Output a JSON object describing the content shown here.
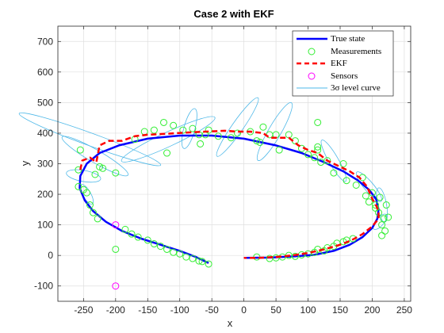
{
  "chart_data": {
    "type": "scatter",
    "title": "Case 2 with EKF",
    "xlabel": "x",
    "ylabel": "y",
    "xlim": [
      -290,
      260
    ],
    "ylim": [
      -150,
      750
    ],
    "xticks": [
      -250,
      -200,
      -150,
      -100,
      -50,
      0,
      50,
      100,
      150,
      200,
      250
    ],
    "yticks": [
      -100,
      0,
      100,
      200,
      300,
      400,
      500,
      600,
      700
    ],
    "grid": true,
    "legend_position": "top-right",
    "legend": [
      "True state",
      "Measurements",
      "EKF",
      "Sensors",
      "3σ level curve"
    ],
    "colors": {
      "true_state": "#0000ff",
      "measurements": "#33ee33",
      "ekf": "#ff0000",
      "sensors": "#ff00ff",
      "level_curve": "#4db8e8"
    },
    "series": [
      {
        "name": "True state",
        "style": "line",
        "points": [
          [
            0,
            -8
          ],
          [
            40,
            -7
          ],
          [
            80,
            -3
          ],
          [
            110,
            2
          ],
          [
            140,
            15
          ],
          [
            165,
            35
          ],
          [
            185,
            60
          ],
          [
            200,
            90
          ],
          [
            208,
            120
          ],
          [
            210,
            150
          ],
          [
            206,
            185
          ],
          [
            195,
            215
          ],
          [
            178,
            245
          ],
          [
            155,
            275
          ],
          [
            125,
            305
          ],
          [
            90,
            335
          ],
          [
            50,
            360
          ],
          [
            0,
            382
          ],
          [
            -50,
            392
          ],
          [
            -100,
            392
          ],
          [
            -150,
            382
          ],
          [
            -195,
            360
          ],
          [
            -225,
            335
          ],
          [
            -245,
            300
          ],
          [
            -255,
            260
          ],
          [
            -256,
            220
          ],
          [
            -248,
            180
          ],
          [
            -235,
            145
          ],
          [
            -215,
            110
          ],
          [
            -190,
            80
          ],
          [
            -160,
            55
          ],
          [
            -130,
            35
          ],
          [
            -100,
            15
          ],
          [
            -75,
            -5
          ],
          [
            -55,
            -25
          ]
        ]
      },
      {
        "name": "Measurements",
        "style": "marker",
        "points": [
          [
            -255,
            345
          ],
          [
            -258,
            280
          ],
          [
            -258,
            225
          ],
          [
            -250,
            215
          ],
          [
            -245,
            205
          ],
          [
            -240,
            165
          ],
          [
            -235,
            140
          ],
          [
            -228,
            120
          ],
          [
            -232,
            265
          ],
          [
            -225,
            290
          ],
          [
            -220,
            285
          ],
          [
            -200,
            270
          ],
          [
            -200,
            20
          ],
          [
            -185,
            85
          ],
          [
            -175,
            70
          ],
          [
            -165,
            60
          ],
          [
            -150,
            50
          ],
          [
            -140,
            38
          ],
          [
            -130,
            30
          ],
          [
            -120,
            20
          ],
          [
            -110,
            10
          ],
          [
            -100,
            5
          ],
          [
            -90,
            -5
          ],
          [
            -80,
            -10
          ],
          [
            -70,
            -18
          ],
          [
            -65,
            -20
          ],
          [
            -55,
            -28
          ],
          [
            -170,
            380
          ],
          [
            -155,
            405
          ],
          [
            -140,
            410
          ],
          [
            -125,
            435
          ],
          [
            -120,
            335
          ],
          [
            -110,
            425
          ],
          [
            -95,
            410
          ],
          [
            -80,
            415
          ],
          [
            -70,
            395
          ],
          [
            -68,
            365
          ],
          [
            -60,
            395
          ],
          [
            -55,
            410
          ],
          [
            -40,
            390
          ],
          [
            -20,
            385
          ],
          [
            -10,
            400
          ],
          [
            10,
            405
          ],
          [
            20,
            375
          ],
          [
            25,
            370
          ],
          [
            30,
            420
          ],
          [
            40,
            395
          ],
          [
            50,
            395
          ],
          [
            55,
            345
          ],
          [
            70,
            395
          ],
          [
            80,
            375
          ],
          [
            90,
            350
          ],
          [
            100,
            330
          ],
          [
            110,
            320
          ],
          [
            115,
            435
          ],
          [
            115,
            355
          ],
          [
            115,
            345
          ],
          [
            120,
            305
          ],
          [
            130,
            310
          ],
          [
            140,
            270
          ],
          [
            155,
            300
          ],
          [
            160,
            245
          ],
          [
            175,
            230
          ],
          [
            185,
            255
          ],
          [
            190,
            195
          ],
          [
            195,
            175
          ],
          [
            200,
            205
          ],
          [
            205,
            165
          ],
          [
            205,
            155
          ],
          [
            210,
            140
          ],
          [
            212,
            190
          ],
          [
            215,
            100
          ],
          [
            218,
            120
          ],
          [
            220,
            80
          ],
          [
            222,
            165
          ],
          [
            225,
            125
          ],
          [
            215,
            65
          ],
          [
            20,
            -5
          ],
          [
            40,
            -10
          ],
          [
            50,
            -8
          ],
          [
            60,
            -5
          ],
          [
            70,
            0
          ],
          [
            80,
            -3
          ],
          [
            90,
            2
          ],
          [
            100,
            5
          ],
          [
            110,
            10
          ],
          [
            115,
            20
          ],
          [
            125,
            15
          ],
          [
            130,
            25
          ],
          [
            140,
            30
          ],
          [
            145,
            40
          ],
          [
            155,
            45
          ],
          [
            160,
            50
          ],
          [
            170,
            55
          ]
        ]
      },
      {
        "name": "EKF",
        "style": "dashed-line",
        "points": [
          [
            -255,
            280
          ],
          [
            -252,
            310
          ],
          [
            -240,
            320
          ],
          [
            -230,
            305
          ],
          [
            -225,
            360
          ],
          [
            -210,
            375
          ],
          [
            -190,
            375
          ],
          [
            -170,
            390
          ],
          [
            -150,
            395
          ],
          [
            -120,
            398
          ],
          [
            -90,
            402
          ],
          [
            -60,
            405
          ],
          [
            -30,
            408
          ],
          [
            -10,
            405
          ],
          [
            10,
            405
          ],
          [
            30,
            400
          ],
          [
            40,
            385
          ],
          [
            55,
            385
          ],
          [
            70,
            385
          ],
          [
            85,
            360
          ],
          [
            100,
            345
          ],
          [
            115,
            335
          ],
          [
            130,
            310
          ],
          [
            150,
            290
          ],
          [
            165,
            275
          ],
          [
            180,
            255
          ],
          [
            192,
            225
          ],
          [
            200,
            185
          ],
          [
            207,
            160
          ],
          [
            210,
            140
          ],
          [
            210,
            120
          ],
          [
            200,
            95
          ],
          [
            185,
            70
          ],
          [
            168,
            50
          ],
          [
            150,
            35
          ],
          [
            125,
            20
          ],
          [
            100,
            8
          ],
          [
            75,
            0
          ],
          [
            50,
            -5
          ],
          [
            20,
            -8
          ],
          [
            0,
            -8
          ]
        ]
      },
      {
        "name": "Sensors",
        "style": "marker",
        "points": [
          [
            -200,
            100
          ],
          [
            -200,
            -100
          ]
        ]
      },
      {
        "name": "3σ level curve",
        "style": "ellipse",
        "ellipses": [
          {
            "center": [
              -240,
              380
            ],
            "rx": 8,
            "ry": 95,
            "angle": 110
          },
          {
            "center": [
              -232,
              325
            ],
            "rx": 8,
            "ry": 48,
            "angle": 120
          },
          {
            "center": [
              -250,
              260
            ],
            "rx": 7,
            "ry": 22,
            "angle": 100
          },
          {
            "center": [
              -118,
              380
            ],
            "rx": 9,
            "ry": 65,
            "angle": 65
          },
          {
            "center": [
              -85,
              415
            ],
            "rx": 7,
            "ry": 26,
            "angle": 15
          },
          {
            "center": [
              -10,
              420
            ],
            "rx": 7,
            "ry": 45,
            "angle": 35
          },
          {
            "center": [
              48,
              405
            ],
            "rx": 8,
            "ry": 42,
            "angle": 30
          },
          {
            "center": [
              140,
              310
            ],
            "rx": 6,
            "ry": 30,
            "angle": 330
          },
          {
            "center": [
              195,
              225
            ],
            "rx": 6,
            "ry": 24,
            "angle": 320
          },
          {
            "center": [
              215,
              165
            ],
            "rx": 6,
            "ry": 22,
            "angle": 350
          },
          {
            "center": [
              212,
              110
            ],
            "rx": 5,
            "ry": 12,
            "angle": 40
          },
          {
            "center": [
              -245,
              200
            ],
            "rx": 5,
            "ry": 14,
            "angle": 150
          }
        ]
      }
    ]
  }
}
